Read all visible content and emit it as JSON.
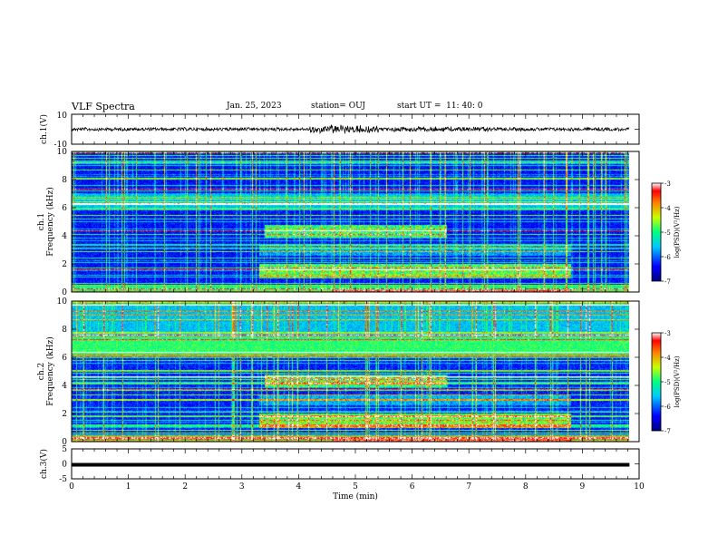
{
  "header": {
    "title": "VLF Spectra",
    "date": "Jan. 25, 2023",
    "station": "station= OUJ",
    "start": "start UT =  11: 40: 0"
  },
  "chart_data": [
    {
      "type": "line",
      "panel": "ch1-waveform",
      "ylabel": "ch.1(V)",
      "ylim": [
        -10,
        10
      ],
      "yticks": [
        "10",
        "-10"
      ],
      "xlim": [
        0,
        10
      ]
    },
    {
      "type": "heatmap",
      "panel": "ch1-spectrogram",
      "ylabel_top": "ch.1",
      "ylabel": "Frequency (kHz)",
      "ylim": [
        0,
        10
      ],
      "yticks": [
        "0",
        "2",
        "4",
        "6",
        "8",
        "10"
      ],
      "xlim": [
        0,
        10
      ],
      "colorbar": {
        "label": "log(PSD)(V²/Hz)",
        "ticks": [
          "-3",
          "-4",
          "-5",
          "-6",
          "-7"
        ],
        "range": [
          -7,
          -3
        ]
      }
    },
    {
      "type": "heatmap",
      "panel": "ch2-spectrogram",
      "ylabel_top": "ch.2",
      "ylabel": "Frequency (kHz)",
      "ylim": [
        0,
        10
      ],
      "yticks": [
        "0",
        "2",
        "4",
        "6",
        "8",
        "10"
      ],
      "xlim": [
        0,
        10
      ],
      "colorbar": {
        "label": "log(PSD)(V²/Hz)",
        "ticks": [
          "-3",
          "-4",
          "-5",
          "-6",
          "-7"
        ],
        "range": [
          -7,
          -3
        ]
      }
    },
    {
      "type": "line",
      "panel": "ch3-waveform",
      "ylabel": "ch.3(V)",
      "ylim": [
        -5,
        5
      ],
      "yticks": [
        "5",
        "0",
        "-5"
      ],
      "xlim": [
        0,
        10
      ]
    }
  ],
  "xaxis": {
    "label": "Time (min)",
    "ticks": [
      "0",
      "1",
      "2",
      "3",
      "4",
      "5",
      "6",
      "7",
      "8",
      "9",
      "10"
    ],
    "data_end_min": 9.83
  }
}
